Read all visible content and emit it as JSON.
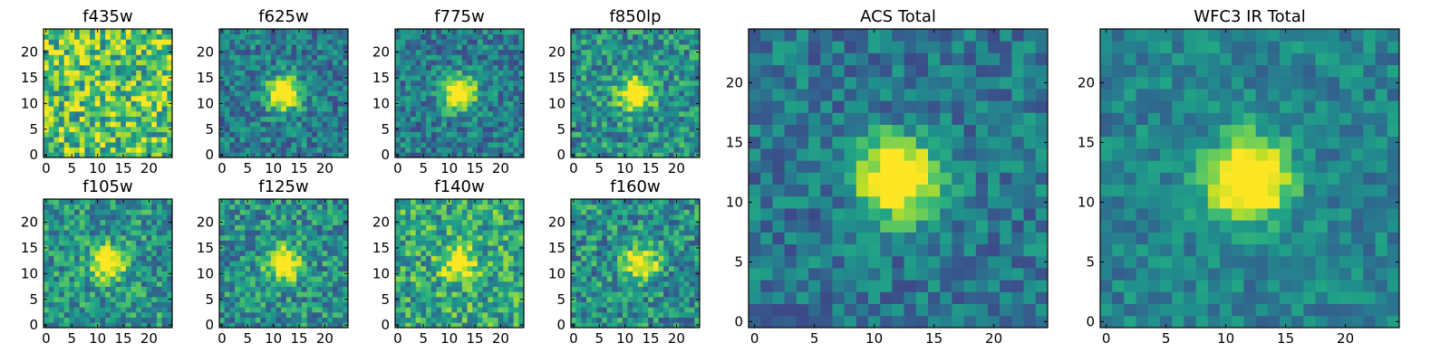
{
  "chart_data": [
    {
      "type": "heatmap",
      "title": "f435w",
      "size": 25,
      "xticks": [
        0,
        5,
        10,
        15,
        20
      ],
      "yticks": [
        0,
        5,
        10,
        15,
        20
      ],
      "xlim": [
        -0.5,
        24.5
      ],
      "ylim": [
        -0.5,
        24.5
      ],
      "colormap": "viridis",
      "source_peak": [
        12,
        12
      ],
      "source_strength": 0.0,
      "noise": 0.55,
      "base": 0.72,
      "seed": 11
    },
    {
      "type": "heatmap",
      "title": "f625w",
      "size": 25,
      "xticks": [
        0,
        5,
        10,
        15,
        20
      ],
      "yticks": [
        0,
        5,
        10,
        15,
        20
      ],
      "xlim": [
        -0.5,
        24.5
      ],
      "ylim": [
        -0.5,
        24.5
      ],
      "colormap": "viridis",
      "source_peak": [
        12,
        12
      ],
      "source_strength": 0.9,
      "noise": 0.35,
      "base": 0.42,
      "seed": 23
    },
    {
      "type": "heatmap",
      "title": "f775w",
      "size": 25,
      "xticks": [
        0,
        5,
        10,
        15,
        20
      ],
      "yticks": [
        0,
        5,
        10,
        15,
        20
      ],
      "xlim": [
        -0.5,
        24.5
      ],
      "ylim": [
        -0.5,
        24.5
      ],
      "colormap": "viridis",
      "source_peak": [
        12,
        12
      ],
      "source_strength": 0.85,
      "noise": 0.35,
      "base": 0.42,
      "seed": 37
    },
    {
      "type": "heatmap",
      "title": "f850lp",
      "size": 25,
      "xticks": [
        0,
        5,
        10,
        15,
        20
      ],
      "yticks": [
        0,
        5,
        10,
        15,
        20
      ],
      "xlim": [
        -0.5,
        24.5
      ],
      "ylim": [
        -0.5,
        24.5
      ],
      "colormap": "viridis",
      "source_peak": [
        12,
        12
      ],
      "source_strength": 0.75,
      "noise": 0.4,
      "base": 0.5,
      "seed": 41
    },
    {
      "type": "heatmap",
      "title": "f105w",
      "size": 25,
      "xticks": [
        0,
        5,
        10,
        15,
        20
      ],
      "yticks": [
        0,
        5,
        10,
        15,
        20
      ],
      "xlim": [
        -0.5,
        24.5
      ],
      "ylim": [
        -0.5,
        24.5
      ],
      "colormap": "viridis",
      "source_peak": [
        12,
        12
      ],
      "source_strength": 0.7,
      "noise": 0.4,
      "base": 0.52,
      "seed": 53
    },
    {
      "type": "heatmap",
      "title": "f125w",
      "size": 25,
      "xticks": [
        0,
        5,
        10,
        15,
        20
      ],
      "yticks": [
        0,
        5,
        10,
        15,
        20
      ],
      "xlim": [
        -0.5,
        24.5
      ],
      "ylim": [
        -0.5,
        24.5
      ],
      "colormap": "viridis",
      "source_peak": [
        12,
        12
      ],
      "source_strength": 0.75,
      "noise": 0.4,
      "base": 0.5,
      "seed": 67
    },
    {
      "type": "heatmap",
      "title": "f140w",
      "size": 25,
      "xticks": [
        0,
        5,
        10,
        15,
        20
      ],
      "yticks": [
        0,
        5,
        10,
        15,
        20
      ],
      "xlim": [
        -0.5,
        24.5
      ],
      "ylim": [
        -0.5,
        24.5
      ],
      "colormap": "viridis",
      "source_peak": [
        12,
        12
      ],
      "source_strength": 0.55,
      "noise": 0.45,
      "base": 0.6,
      "seed": 79
    },
    {
      "type": "heatmap",
      "title": "f160w",
      "size": 25,
      "xticks": [
        0,
        5,
        10,
        15,
        20
      ],
      "yticks": [
        0,
        5,
        10,
        15,
        20
      ],
      "xlim": [
        -0.5,
        24.5
      ],
      "ylim": [
        -0.5,
        24.5
      ],
      "colormap": "viridis",
      "source_peak": [
        13,
        12
      ],
      "source_strength": 0.7,
      "noise": 0.42,
      "base": 0.5,
      "seed": 83
    },
    {
      "type": "heatmap",
      "title": "ACS Total",
      "size": 25,
      "xticks": [
        0,
        5,
        10,
        15,
        20
      ],
      "yticks": [
        0,
        5,
        10,
        15,
        20
      ],
      "xlim": [
        -0.5,
        24.5
      ],
      "ylim": [
        -0.5,
        24.5
      ],
      "colormap": "viridis",
      "source_peak": [
        12,
        12
      ],
      "source_strength": 0.95,
      "noise": 0.3,
      "base": 0.4,
      "seed": 97
    },
    {
      "type": "heatmap",
      "title": "WFC3 IR Total",
      "size": 25,
      "xticks": [
        0,
        5,
        10,
        15,
        20
      ],
      "yticks": [
        0,
        5,
        10,
        15,
        20
      ],
      "xlim": [
        -0.5,
        24.5
      ],
      "ylim": [
        -0.5,
        24.5
      ],
      "colormap": "viridis",
      "source_peak": [
        12,
        12
      ],
      "source_strength": 1.0,
      "noise": 0.25,
      "base": 0.45,
      "seed": 101
    }
  ]
}
